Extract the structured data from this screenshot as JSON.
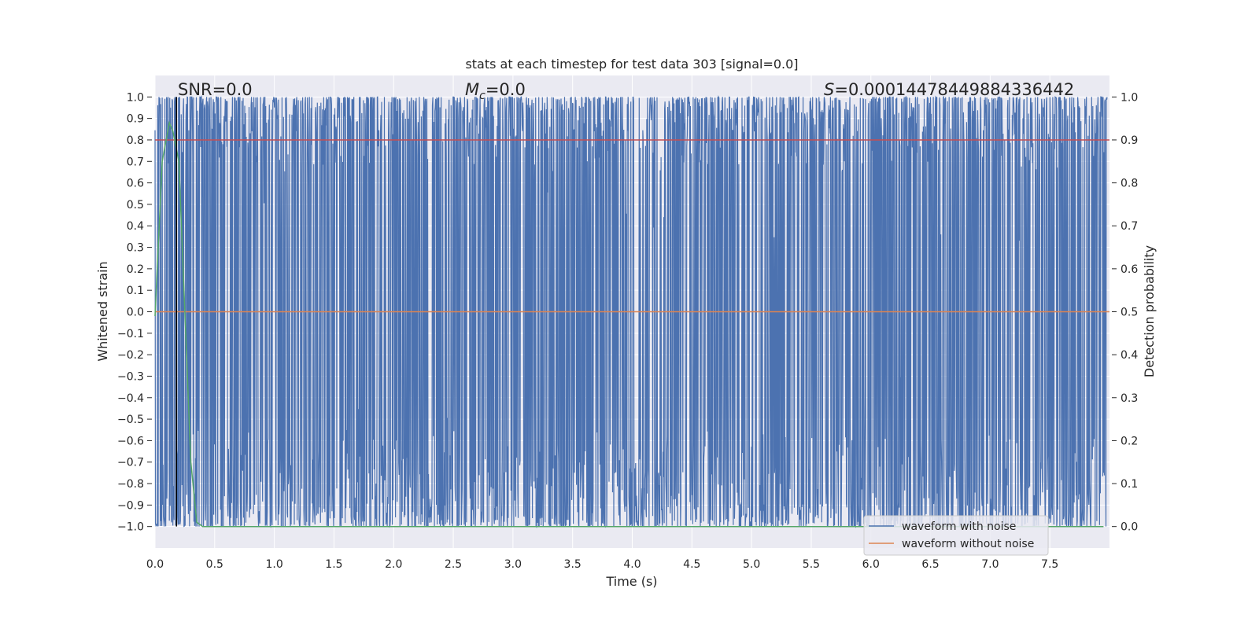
{
  "chart_data": {
    "type": "line",
    "title": "stats at each timestep for test data 303 [signal=0.0]",
    "xlabel": "Time (s)",
    "ylabel_left": "Whitened strain",
    "ylabel_right": "Detection probability",
    "xlim": [
      0.0,
      8.0
    ],
    "ylim_left": [
      -1.1,
      1.1
    ],
    "ylim_right": [
      -0.05,
      1.05
    ],
    "x_ticks": [
      "0.0",
      "0.5",
      "1.0",
      "1.5",
      "2.0",
      "2.5",
      "3.0",
      "3.5",
      "4.0",
      "4.5",
      "5.0",
      "5.5",
      "6.0",
      "6.5",
      "7.0",
      "7.5"
    ],
    "y_ticks_left": [
      "1.0",
      "0.9",
      "0.8",
      "0.7",
      "0.6",
      "0.5",
      "0.4",
      "0.3",
      "0.2",
      "0.1",
      "0.0",
      "−0.1",
      "−0.2",
      "−0.3",
      "−0.4",
      "−0.5",
      "−0.6",
      "−0.7",
      "−0.8",
      "−0.9",
      "−1.0"
    ],
    "y_ticks_right": [
      "1.0",
      "0.9",
      "0.8",
      "0.7",
      "0.6",
      "0.5",
      "0.4",
      "0.3",
      "0.2",
      "0.1",
      "0.0"
    ],
    "grid": true,
    "annotations": {
      "snr": "SNR=0.0",
      "mc_symbol": "M",
      "mc_sub": "c",
      "mc_value": "=0.0",
      "s_symbol": "S",
      "s_value": "=0.00014478449884336442"
    },
    "legend": {
      "placement": "lower-right",
      "entries": [
        "waveform with noise",
        "waveform without noise"
      ]
    },
    "colors": {
      "noise": "#4c72b0",
      "clean": "#dd8452",
      "prob": "#55a868",
      "threshold": "#c44e52",
      "marker": "#000000",
      "background": "#eaeaf2"
    },
    "series": [
      {
        "name": "waveform with noise",
        "axis": "left",
        "description_range": [
          -1.0,
          1.0
        ]
      },
      {
        "name": "waveform without noise",
        "axis": "left",
        "x": [
          0.0,
          8.0
        ],
        "y": [
          0.0,
          0.0
        ]
      },
      {
        "axis": "right",
        "x": [
          0.0,
          0.06,
          0.12,
          0.15,
          0.2,
          0.25,
          0.3,
          0.35,
          0.4,
          1.0,
          2.0,
          4.0,
          6.0,
          7.95
        ],
        "y": [
          0.49,
          0.85,
          0.94,
          0.92,
          0.85,
          0.5,
          0.15,
          0.01,
          0.0,
          0.0,
          0.0,
          0.0,
          0.0,
          0.0
        ]
      }
    ],
    "threshold_line": {
      "axis": "right",
      "y": 0.9
    },
    "marker_line": {
      "x": 0.18,
      "y_range": [
        -1.0,
        1.0
      ]
    }
  }
}
